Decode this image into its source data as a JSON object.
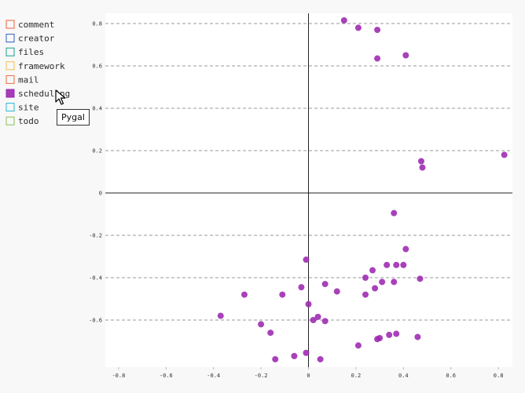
{
  "chart_data": {
    "type": "scatter",
    "title": "",
    "xlabel": "",
    "ylabel": "",
    "xlim": [
      -0.85,
      0.85
    ],
    "ylim": [
      -0.8,
      0.85
    ],
    "x_ticks": [
      -0.8,
      -0.6,
      -0.4,
      -0.2,
      0,
      0.2,
      0.4,
      0.6,
      0.8
    ],
    "x_tick_labels": [
      "-0.8",
      "-0.6",
      "-0.4",
      "-0.2",
      "0",
      "0.2",
      "0.4",
      "0.6",
      "0.8"
    ],
    "y_ticks": [
      -0.6,
      -0.4,
      -0.2,
      0,
      0.2,
      0.4,
      0.6,
      0.8
    ],
    "y_tick_labels": [
      "-0.6",
      "-0.4",
      "-0.2",
      "0",
      "0.2",
      "0.4",
      "0.6",
      "0.8"
    ],
    "grid": "horizontal dashed",
    "legend_position": "left",
    "legend": [
      {
        "name": "comment",
        "color": "#f0613d",
        "active": false
      },
      {
        "name": "creator",
        "color": "#2f5ec2",
        "active": false
      },
      {
        "name": "files",
        "color": "#14a38b",
        "active": false
      },
      {
        "name": "framework",
        "color": "#f5c04a",
        "active": false
      },
      {
        "name": "mail",
        "color": "#ec6d3d",
        "active": false
      },
      {
        "name": "scheduling",
        "color": "#9c27b0",
        "active": true
      },
      {
        "name": "site",
        "color": "#26b8d6",
        "active": false
      },
      {
        "name": "todo",
        "color": "#8cc152",
        "active": false
      }
    ],
    "series": [
      {
        "name": "scheduling",
        "color": "#9c27b0",
        "points": [
          [
            0.15,
            0.815
          ],
          [
            0.21,
            0.78
          ],
          [
            0.29,
            0.77
          ],
          [
            0.29,
            0.635
          ],
          [
            0.41,
            0.65
          ],
          [
            0.475,
            0.15
          ],
          [
            0.48,
            0.12
          ],
          [
            0.825,
            0.18
          ],
          [
            0.36,
            -0.095
          ],
          [
            0.41,
            -0.265
          ],
          [
            0.33,
            -0.34
          ],
          [
            0.37,
            -0.34
          ],
          [
            0.4,
            -0.34
          ],
          [
            -0.01,
            -0.315
          ],
          [
            0.27,
            -0.365
          ],
          [
            0.24,
            -0.4
          ],
          [
            0.47,
            -0.405
          ],
          [
            0.36,
            -0.42
          ],
          [
            0.31,
            -0.42
          ],
          [
            0.07,
            -0.43
          ],
          [
            0.28,
            -0.45
          ],
          [
            -0.03,
            -0.445
          ],
          [
            0.12,
            -0.465
          ],
          [
            0.24,
            -0.48
          ],
          [
            -0.11,
            -0.48
          ],
          [
            -0.27,
            -0.48
          ],
          [
            0.0,
            -0.525
          ],
          [
            -0.37,
            -0.58
          ],
          [
            0.04,
            -0.585
          ],
          [
            0.02,
            -0.6
          ],
          [
            0.07,
            -0.605
          ],
          [
            -0.2,
            -0.62
          ],
          [
            -0.16,
            -0.66
          ],
          [
            0.37,
            -0.665
          ],
          [
            0.34,
            -0.67
          ],
          [
            0.3,
            -0.685
          ],
          [
            0.29,
            -0.69
          ],
          [
            0.46,
            -0.68
          ],
          [
            0.21,
            -0.72
          ],
          [
            -0.01,
            -0.755
          ],
          [
            -0.06,
            -0.77
          ],
          [
            -0.14,
            -0.785
          ],
          [
            0.05,
            -0.785
          ]
        ]
      }
    ]
  },
  "tooltip": {
    "text": "Pygal"
  }
}
